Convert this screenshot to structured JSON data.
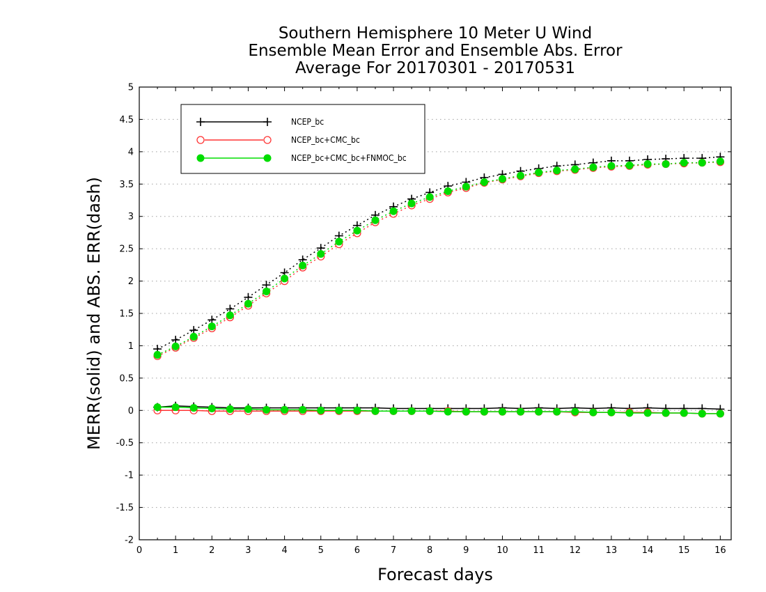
{
  "chart_data": {
    "type": "line",
    "title": [
      "Southern Hemisphere 10 Meter U Wind",
      "Ensemble Mean Error and Ensemble Abs. Error",
      "Average For 20170301 - 20170531"
    ],
    "xlabel": "Forecast days",
    "ylabel": "MERR(solid) and ABS. ERR(dash)",
    "xlim": [
      0,
      16.3
    ],
    "ylim": [
      -2,
      5
    ],
    "x_ticks": [
      0,
      1,
      2,
      3,
      4,
      5,
      6,
      7,
      8,
      9,
      10,
      11,
      12,
      13,
      14,
      15,
      16
    ],
    "y_ticks": [
      -2,
      -1.5,
      -1,
      -0.5,
      0,
      0.5,
      1,
      1.5,
      2,
      2.5,
      3,
      3.5,
      4,
      4.5,
      5
    ],
    "grid": "horizontal dotted",
    "legend_position": "top-left",
    "x": [
      0.5,
      1,
      1.5,
      2,
      2.5,
      3,
      3.5,
      4,
      4.5,
      5,
      5.5,
      6,
      6.5,
      7,
      7.5,
      8,
      8.5,
      9,
      9.5,
      10,
      10.5,
      11,
      11.5,
      12,
      12.5,
      13,
      13.5,
      14,
      14.5,
      15,
      15.5,
      16
    ],
    "series": [
      {
        "name": "NCEP_bc",
        "color": "#000000",
        "marker": "plus",
        "abs_err": [
          0.95,
          1.09,
          1.24,
          1.4,
          1.57,
          1.75,
          1.94,
          2.13,
          2.33,
          2.51,
          2.7,
          2.86,
          3.02,
          3.15,
          3.27,
          3.37,
          3.47,
          3.53,
          3.6,
          3.65,
          3.7,
          3.74,
          3.78,
          3.8,
          3.83,
          3.86,
          3.86,
          3.88,
          3.89,
          3.9,
          3.9,
          3.92
        ],
        "mean_err": [
          0.05,
          0.07,
          0.06,
          0.05,
          0.04,
          0.04,
          0.04,
          0.04,
          0.04,
          0.04,
          0.04,
          0.04,
          0.04,
          0.03,
          0.03,
          0.03,
          0.03,
          0.03,
          0.03,
          0.04,
          0.03,
          0.04,
          0.03,
          0.04,
          0.03,
          0.04,
          0.03,
          0.04,
          0.03,
          0.03,
          0.03,
          0.02
        ]
      },
      {
        "name": "NCEP_bc+CMC_bc",
        "color": "#ff3333",
        "marker": "open-circle",
        "abs_err": [
          0.84,
          0.97,
          1.12,
          1.27,
          1.44,
          1.62,
          1.81,
          2.0,
          2.21,
          2.38,
          2.57,
          2.74,
          2.91,
          3.04,
          3.17,
          3.27,
          3.37,
          3.44,
          3.52,
          3.57,
          3.62,
          3.67,
          3.7,
          3.72,
          3.75,
          3.77,
          3.78,
          3.8,
          3.81,
          3.82,
          3.83,
          3.84
        ],
        "mean_err": [
          0.0,
          0.0,
          0.0,
          -0.01,
          -0.01,
          -0.01,
          -0.01,
          -0.01,
          -0.01,
          -0.01,
          -0.01,
          -0.01,
          -0.01,
          -0.01,
          -0.01,
          -0.01,
          -0.01,
          -0.02,
          -0.02,
          -0.02,
          -0.02,
          -0.02,
          -0.02,
          -0.03,
          -0.03,
          -0.03,
          -0.03,
          -0.03,
          -0.04,
          -0.04,
          -0.05,
          -0.05
        ]
      },
      {
        "name": "NCEP_bc+CMC_bc+FNMOC_bc",
        "color": "#00dd00",
        "marker": "filled-circle",
        "abs_err": [
          0.86,
          0.99,
          1.14,
          1.3,
          1.47,
          1.65,
          1.84,
          2.04,
          2.24,
          2.42,
          2.61,
          2.78,
          2.94,
          3.08,
          3.2,
          3.3,
          3.39,
          3.46,
          3.53,
          3.58,
          3.63,
          3.68,
          3.71,
          3.73,
          3.76,
          3.78,
          3.79,
          3.81,
          3.81,
          3.83,
          3.83,
          3.85
        ],
        "mean_err": [
          0.05,
          0.05,
          0.04,
          0.03,
          0.02,
          0.02,
          0.01,
          0.01,
          0.01,
          0.0,
          0.0,
          0.0,
          -0.01,
          -0.01,
          -0.01,
          -0.01,
          -0.02,
          -0.02,
          -0.02,
          -0.02,
          -0.02,
          -0.02,
          -0.02,
          -0.02,
          -0.03,
          -0.03,
          -0.04,
          -0.04,
          -0.04,
          -0.04,
          -0.05,
          -0.05
        ]
      }
    ]
  }
}
